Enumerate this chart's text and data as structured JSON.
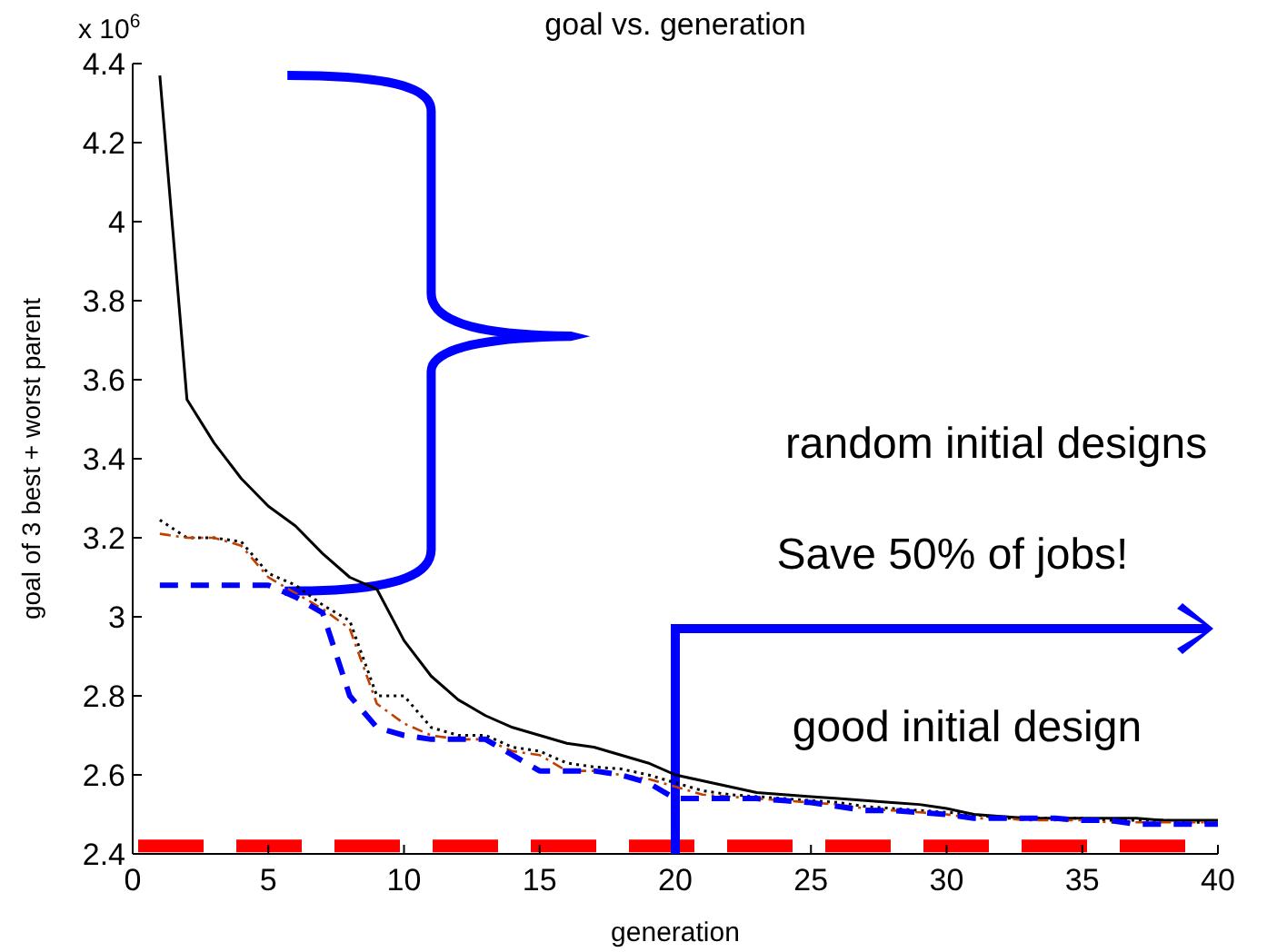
{
  "chart_data": {
    "type": "line",
    "title": "goal vs. generation",
    "xlabel": "generation",
    "ylabel": "goal of 3 best + worst parent",
    "x": [
      1,
      2,
      3,
      4,
      5,
      6,
      7,
      8,
      9,
      10,
      11,
      12,
      13,
      14,
      15,
      16,
      17,
      18,
      19,
      20,
      21,
      22,
      23,
      24,
      25,
      26,
      27,
      28,
      29,
      30,
      31,
      32,
      33,
      34,
      35,
      36,
      37,
      38,
      39,
      40
    ],
    "series": [
      {
        "color": "#000000",
        "line_style": "solid",
        "values": [
          4.37,
          3.55,
          3.44,
          3.35,
          3.28,
          3.23,
          3.16,
          3.1,
          3.07,
          2.94,
          2.85,
          2.79,
          2.75,
          2.72,
          2.7,
          2.68,
          2.67,
          2.65,
          2.63,
          2.6,
          2.585,
          2.57,
          2.555,
          2.55,
          2.545,
          2.54,
          2.535,
          2.53,
          2.525,
          2.515,
          2.5,
          2.495,
          2.49,
          2.49,
          2.49,
          2.49,
          2.49,
          2.485,
          2.485,
          2.485
        ]
      },
      {
        "color": "#000000",
        "line_style": "dotted",
        "values": [
          3.245,
          3.2,
          3.2,
          3.19,
          3.11,
          3.08,
          3.03,
          2.99,
          2.8,
          2.8,
          2.72,
          2.7,
          2.7,
          2.67,
          2.66,
          2.63,
          2.62,
          2.615,
          2.6,
          2.58,
          2.56,
          2.55,
          2.545,
          2.54,
          2.535,
          2.53,
          2.52,
          2.515,
          2.51,
          2.505,
          2.5,
          2.49,
          2.49,
          2.49,
          2.49,
          2.485,
          2.485,
          2.485,
          2.48,
          2.48
        ]
      },
      {
        "color": "#c04000",
        "line_style": "dashdot",
        "values": [
          3.21,
          3.2,
          3.2,
          3.18,
          3.1,
          3.06,
          3.02,
          2.97,
          2.78,
          2.73,
          2.7,
          2.69,
          2.69,
          2.66,
          2.65,
          2.61,
          2.61,
          2.6,
          2.59,
          2.57,
          2.55,
          2.545,
          2.54,
          2.535,
          2.53,
          2.525,
          2.515,
          2.51,
          2.505,
          2.5,
          2.49,
          2.49,
          2.485,
          2.485,
          2.485,
          2.48,
          2.48,
          2.48,
          2.48,
          2.48
        ]
      },
      {
        "color": "#0000ff",
        "line_style": "dashed",
        "values": [
          3.08,
          3.08,
          3.08,
          3.08,
          3.08,
          3.05,
          3.01,
          2.8,
          2.72,
          2.7,
          2.69,
          2.69,
          2.69,
          2.65,
          2.61,
          2.61,
          2.61,
          2.6,
          2.58,
          2.54,
          2.54,
          2.54,
          2.54,
          2.535,
          2.53,
          2.52,
          2.51,
          2.51,
          2.505,
          2.5,
          2.49,
          2.49,
          2.49,
          2.49,
          2.485,
          2.485,
          2.475,
          2.475,
          2.475,
          2.475
        ]
      }
    ],
    "ref_lines": [
      {
        "axis": "y",
        "value": 2.42,
        "color": "#ff0000",
        "line_style": "dashed"
      }
    ],
    "annotations": [
      "x 10$^{6}$",
      "random initial designs",
      "Save 50% of jobs!",
      "good initial design"
    ],
    "xlim": [
      0,
      40
    ],
    "xticks": [
      0,
      5,
      10,
      15,
      20,
      25,
      30,
      35,
      40
    ],
    "ylim": [
      2.4,
      4.4
    ],
    "yticks": [
      2.4,
      2.6,
      2.8,
      3,
      3.2,
      3.4,
      3.6,
      3.8,
      4,
      4.2,
      4.4
    ],
    "grid": false,
    "marker": "none"
  }
}
